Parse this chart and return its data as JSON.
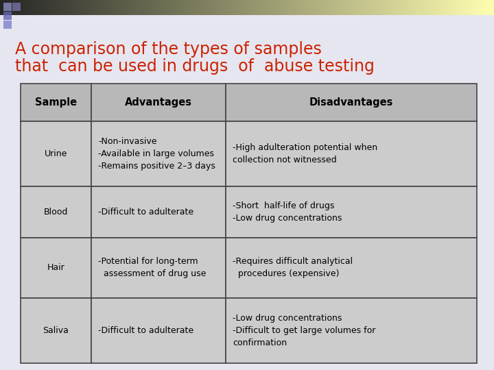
{
  "title_line1": "A comparison of the types of samples",
  "title_line2": "that  can be used in drugs  of  abuse testing",
  "title_color": "#cc2200",
  "bg_color": "#e6e6f0",
  "header_bg": "#b8b8b8",
  "cell_bg": "#cccccc",
  "border_color": "#444444",
  "header_row": [
    "Sample",
    "Advantages",
    "Disadvantages"
  ],
  "rows": [
    {
      "sample": "Urine",
      "advantages": "-Non-invasive\n-Available in large volumes\n-Remains positive 2–3 days",
      "disadvantages": "-High adulteration potential when\ncollection not witnessed"
    },
    {
      "sample": "Blood",
      "advantages": "-Difficult to adulterate",
      "disadvantages": "-Short  half-life of drugs\n-Low drug concentrations"
    },
    {
      "sample": "Hair",
      "advantages": "-Potential for long-term\n  assessment of drug use",
      "disadvantages": "-Requires difficult analytical\n  procedures (expensive)"
    },
    {
      "sample": "Saliva",
      "advantages": "-Difficult to adulterate",
      "disadvantages": "-Low drug concentrations\n-Difficult to get large volumes for\nconfirmation"
    }
  ],
  "font_size_title": 17,
  "font_size_header": 10.5,
  "font_size_cell": 9.0
}
